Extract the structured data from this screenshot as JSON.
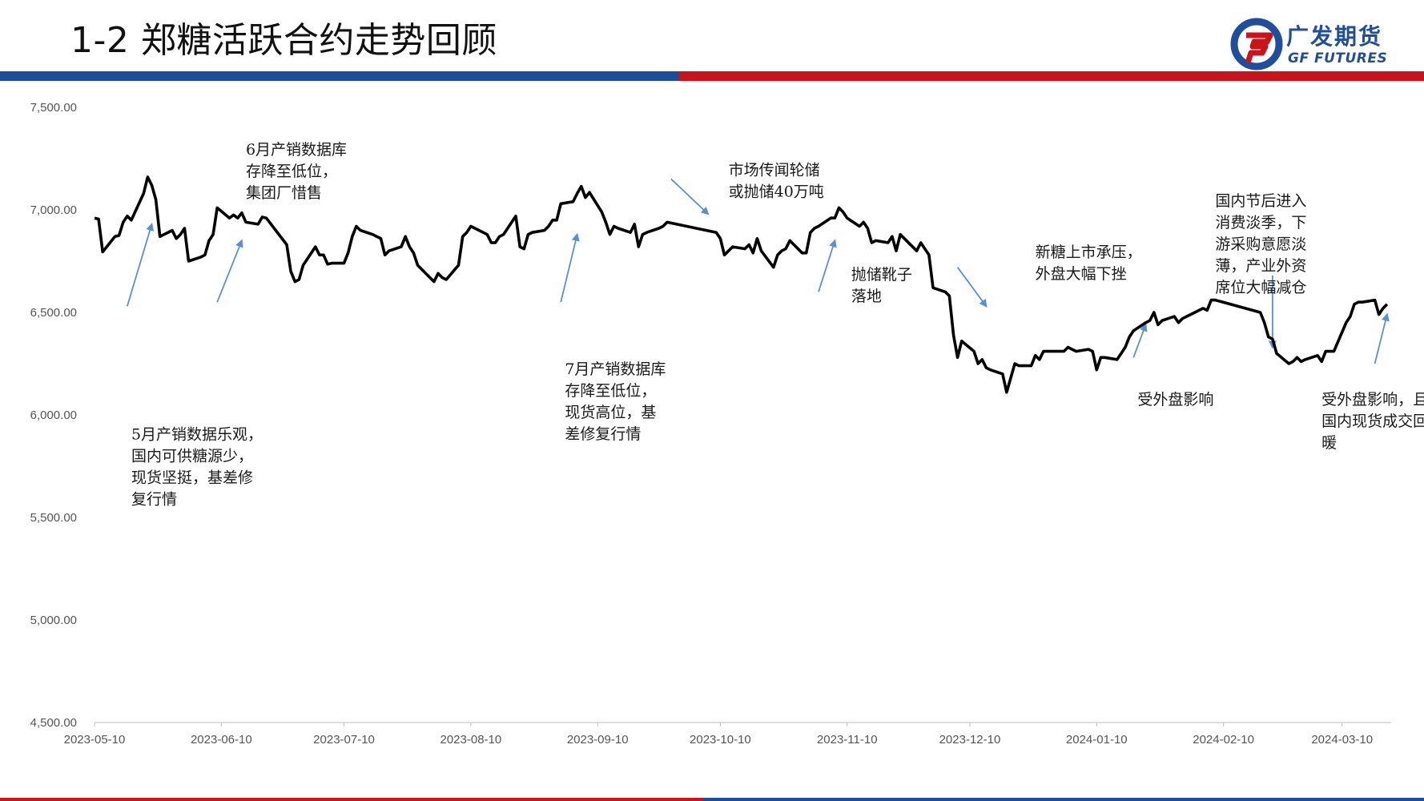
{
  "header": {
    "title": "1-2 郑糖活跃合约走势回顾",
    "logo_cn": "广发期货",
    "logo_en": "GF FUTURES"
  },
  "colors": {
    "line": "#000000",
    "arrow": "#5b8fd0",
    "brand_blue": "#1a4e9a",
    "brand_red": "#c8151b"
  },
  "chart_data": {
    "type": "line",
    "title": "",
    "xlabel": "",
    "ylabel": "",
    "ylim": [
      4500,
      7500
    ],
    "y_ticks": [
      "4,500.00",
      "5,000.00",
      "5,500.00",
      "6,000.00",
      "6,500.00",
      "7,000.00",
      "7,500.00"
    ],
    "y_tick_values": [
      4500,
      5000,
      5500,
      6000,
      6500,
      7000,
      7500
    ],
    "xlim": [
      "2023-05-10",
      "2024-03-22"
    ],
    "x_ticks": [
      "2023-05-10",
      "2023-06-10",
      "2023-07-10",
      "2023-08-10",
      "2023-09-10",
      "2023-10-10",
      "2023-11-10",
      "2023-12-10",
      "2024-01-10",
      "2024-02-10",
      "2024-03-10"
    ],
    "grid": false,
    "legend": "none",
    "series": [
      {
        "points": [
          [
            "2023-05-10",
            6960
          ],
          [
            "2023-05-11",
            6955
          ],
          [
            "2023-05-12",
            6795
          ],
          [
            "2023-05-15",
            6870
          ],
          [
            "2023-05-16",
            6875
          ],
          [
            "2023-05-17",
            6940
          ],
          [
            "2023-05-18",
            6970
          ],
          [
            "2023-05-19",
            6950
          ],
          [
            "2023-05-22",
            7080
          ],
          [
            "2023-05-23",
            7160
          ],
          [
            "2023-05-24",
            7120
          ],
          [
            "2023-05-25",
            7050
          ],
          [
            "2023-05-26",
            6870
          ],
          [
            "2023-05-29",
            6900
          ],
          [
            "2023-05-30",
            6860
          ],
          [
            "2023-05-31",
            6880
          ],
          [
            "2023-06-01",
            6910
          ],
          [
            "2023-06-02",
            6750
          ],
          [
            "2023-06-05",
            6770
          ],
          [
            "2023-06-06",
            6780
          ],
          [
            "2023-06-07",
            6850
          ],
          [
            "2023-06-08",
            6880
          ],
          [
            "2023-06-09",
            7010
          ],
          [
            "2023-06-12",
            6960
          ],
          [
            "2023-06-13",
            6975
          ],
          [
            "2023-06-14",
            6960
          ],
          [
            "2023-06-15",
            6985
          ],
          [
            "2023-06-16",
            6940
          ],
          [
            "2023-06-19",
            6930
          ],
          [
            "2023-06-20",
            6965
          ],
          [
            "2023-06-21",
            6960
          ],
          [
            "2023-06-26",
            6830
          ],
          [
            "2023-06-27",
            6700
          ],
          [
            "2023-06-28",
            6650
          ],
          [
            "2023-06-29",
            6660
          ],
          [
            "2023-06-30",
            6730
          ],
          [
            "2023-07-03",
            6820
          ],
          [
            "2023-07-04",
            6780
          ],
          [
            "2023-07-05",
            6780
          ],
          [
            "2023-07-06",
            6735
          ],
          [
            "2023-07-07",
            6740
          ],
          [
            "2023-07-10",
            6740
          ],
          [
            "2023-07-11",
            6790
          ],
          [
            "2023-07-12",
            6870
          ],
          [
            "2023-07-13",
            6920
          ],
          [
            "2023-07-14",
            6900
          ],
          [
            "2023-07-17",
            6880
          ],
          [
            "2023-07-18",
            6870
          ],
          [
            "2023-07-19",
            6860
          ],
          [
            "2023-07-20",
            6780
          ],
          [
            "2023-07-21",
            6800
          ],
          [
            "2023-07-24",
            6820
          ],
          [
            "2023-07-25",
            6870
          ],
          [
            "2023-07-26",
            6820
          ],
          [
            "2023-07-27",
            6790
          ],
          [
            "2023-07-28",
            6730
          ],
          [
            "2023-07-31",
            6670
          ],
          [
            "2023-08-01",
            6650
          ],
          [
            "2023-08-02",
            6690
          ],
          [
            "2023-08-03",
            6670
          ],
          [
            "2023-08-04",
            6660
          ],
          [
            "2023-08-07",
            6730
          ],
          [
            "2023-08-08",
            6870
          ],
          [
            "2023-08-09",
            6890
          ],
          [
            "2023-08-10",
            6920
          ],
          [
            "2023-08-14",
            6880
          ],
          [
            "2023-08-15",
            6840
          ],
          [
            "2023-08-16",
            6840
          ],
          [
            "2023-08-17",
            6870
          ],
          [
            "2023-08-18",
            6880
          ],
          [
            "2023-08-21",
            6970
          ],
          [
            "2023-08-22",
            6820
          ],
          [
            "2023-08-23",
            6810
          ],
          [
            "2023-08-24",
            6880
          ],
          [
            "2023-08-25",
            6890
          ],
          [
            "2023-08-28",
            6900
          ],
          [
            "2023-08-29",
            6920
          ],
          [
            "2023-08-30",
            6950
          ],
          [
            "2023-08-31",
            6950
          ],
          [
            "2023-09-01",
            7030
          ],
          [
            "2023-09-04",
            7040
          ],
          [
            "2023-09-05",
            7080
          ],
          [
            "2023-09-06",
            7115
          ],
          [
            "2023-09-07",
            7060
          ],
          [
            "2023-09-08",
            7085
          ],
          [
            "2023-09-11",
            6990
          ],
          [
            "2023-09-12",
            6940
          ],
          [
            "2023-09-13",
            6880
          ],
          [
            "2023-09-14",
            6920
          ],
          [
            "2023-09-15",
            6910
          ],
          [
            "2023-09-18",
            6890
          ],
          [
            "2023-09-19",
            6930
          ],
          [
            "2023-09-20",
            6820
          ],
          [
            "2023-09-21",
            6880
          ],
          [
            "2023-09-22",
            6890
          ],
          [
            "2023-09-25",
            6910
          ],
          [
            "2023-09-26",
            6920
          ],
          [
            "2023-09-27",
            6940
          ],
          [
            "2023-10-09",
            6890
          ],
          [
            "2023-10-10",
            6860
          ],
          [
            "2023-10-11",
            6780
          ],
          [
            "2023-10-12",
            6800
          ],
          [
            "2023-10-13",
            6820
          ],
          [
            "2023-10-16",
            6810
          ],
          [
            "2023-10-17",
            6830
          ],
          [
            "2023-10-18",
            6790
          ],
          [
            "2023-10-19",
            6860
          ],
          [
            "2023-10-20",
            6800
          ],
          [
            "2023-10-23",
            6720
          ],
          [
            "2023-10-24",
            6780
          ],
          [
            "2023-10-25",
            6800
          ],
          [
            "2023-10-26",
            6810
          ],
          [
            "2023-10-27",
            6850
          ],
          [
            "2023-10-30",
            6790
          ],
          [
            "2023-10-31",
            6790
          ],
          [
            "2023-11-01",
            6890
          ],
          [
            "2023-11-02",
            6910
          ],
          [
            "2023-11-03",
            6920
          ],
          [
            "2023-11-06",
            6960
          ],
          [
            "2023-11-07",
            6960
          ],
          [
            "2023-11-08",
            7010
          ],
          [
            "2023-11-09",
            6990
          ],
          [
            "2023-11-10",
            6960
          ],
          [
            "2023-11-13",
            6920
          ],
          [
            "2023-11-14",
            6940
          ],
          [
            "2023-11-15",
            6910
          ],
          [
            "2023-11-16",
            6840
          ],
          [
            "2023-11-17",
            6850
          ],
          [
            "2023-11-20",
            6840
          ],
          [
            "2023-11-21",
            6870
          ],
          [
            "2023-11-22",
            6800
          ],
          [
            "2023-11-23",
            6880
          ],
          [
            "2023-11-24",
            6860
          ],
          [
            "2023-11-27",
            6800
          ],
          [
            "2023-11-28",
            6840
          ],
          [
            "2023-11-29",
            6810
          ],
          [
            "2023-11-30",
            6780
          ],
          [
            "2023-12-01",
            6620
          ],
          [
            "2023-12-04",
            6600
          ],
          [
            "2023-12-05",
            6580
          ],
          [
            "2023-12-06",
            6390
          ],
          [
            "2023-12-07",
            6280
          ],
          [
            "2023-12-08",
            6360
          ],
          [
            "2023-12-11",
            6310
          ],
          [
            "2023-12-12",
            6250
          ],
          [
            "2023-12-13",
            6270
          ],
          [
            "2023-12-14",
            6230
          ],
          [
            "2023-12-15",
            6220
          ],
          [
            "2023-12-18",
            6200
          ],
          [
            "2023-12-19",
            6110
          ],
          [
            "2023-12-20",
            6180
          ],
          [
            "2023-12-21",
            6250
          ],
          [
            "2023-12-22",
            6240
          ],
          [
            "2023-12-25",
            6240
          ],
          [
            "2023-12-26",
            6290
          ],
          [
            "2023-12-27",
            6270
          ],
          [
            "2023-12-28",
            6310
          ],
          [
            "2023-12-29",
            6310
          ],
          [
            "2024-01-02",
            6310
          ],
          [
            "2024-01-03",
            6330
          ],
          [
            "2024-01-04",
            6320
          ],
          [
            "2024-01-05",
            6310
          ],
          [
            "2024-01-08",
            6320
          ],
          [
            "2024-01-09",
            6310
          ],
          [
            "2024-01-10",
            6220
          ],
          [
            "2024-01-11",
            6280
          ],
          [
            "2024-01-12",
            6280
          ],
          [
            "2024-01-15",
            6270
          ],
          [
            "2024-01-16",
            6300
          ],
          [
            "2024-01-17",
            6330
          ],
          [
            "2024-01-18",
            6380
          ],
          [
            "2024-01-19",
            6410
          ],
          [
            "2024-01-22",
            6450
          ],
          [
            "2024-01-23",
            6460
          ],
          [
            "2024-01-24",
            6500
          ],
          [
            "2024-01-25",
            6440
          ],
          [
            "2024-01-26",
            6460
          ],
          [
            "2024-01-29",
            6480
          ],
          [
            "2024-01-30",
            6450
          ],
          [
            "2024-01-31",
            6470
          ],
          [
            "2024-02-01",
            6480
          ],
          [
            "2024-02-02",
            6490
          ],
          [
            "2024-02-05",
            6520
          ],
          [
            "2024-02-06",
            6510
          ],
          [
            "2024-02-07",
            6560
          ],
          [
            "2024-02-08",
            6560
          ],
          [
            "2024-02-19",
            6500
          ],
          [
            "2024-02-20",
            6450
          ],
          [
            "2024-02-21",
            6380
          ],
          [
            "2024-02-22",
            6370
          ],
          [
            "2024-02-23",
            6300
          ],
          [
            "2024-02-26",
            6250
          ],
          [
            "2024-02-27",
            6260
          ],
          [
            "2024-02-28",
            6280
          ],
          [
            "2024-02-29",
            6260
          ],
          [
            "2024-03-01",
            6270
          ],
          [
            "2024-03-04",
            6290
          ],
          [
            "2024-03-05",
            6260
          ],
          [
            "2024-03-06",
            6310
          ],
          [
            "2024-03-07",
            6310
          ],
          [
            "2024-03-08",
            6310
          ],
          [
            "2024-03-11",
            6450
          ],
          [
            "2024-03-12",
            6480
          ],
          [
            "2024-03-13",
            6540
          ],
          [
            "2024-03-14",
            6550
          ],
          [
            "2024-03-15",
            6550
          ],
          [
            "2024-03-18",
            6560
          ],
          [
            "2024-03-19",
            6490
          ],
          [
            "2024-03-20",
            6520
          ],
          [
            "2024-03-21",
            6540
          ]
        ]
      }
    ],
    "annotations": [
      {
        "lines": [
          "5月产销数据乐观，",
          "国内可供糖源少，",
          "现货坚挺，基差修",
          "复行情"
        ],
        "date": "2023-05-19",
        "value": 5880
      },
      {
        "lines": [
          "6月产销数据库",
          "存降至低位，",
          "集团厂惜售"
        ],
        "date": "2023-06-16",
        "value": 7270
      },
      {
        "lines": [
          "7月产销数据库",
          "存降至低位，",
          "现货高位，基",
          "差修复行情"
        ],
        "date": "2023-09-02",
        "value": 6200
      },
      {
        "lines": [
          "市场传闻轮储",
          "或抛储40万吨"
        ],
        "date": "2023-10-12",
        "value": 7170
      },
      {
        "lines": [
          "抛储靴子",
          "落地"
        ],
        "date": "2023-11-11",
        "value": 6660
      },
      {
        "lines": [
          "新糖上市承压，",
          "外盘大幅下挫"
        ],
        "date": "2023-12-26",
        "value": 6770
      },
      {
        "lines": [
          "受外盘影响"
        ],
        "date": "2024-01-20",
        "value": 6050
      },
      {
        "lines": [
          "国内节后进入",
          "消费淡季，下",
          "游采购意愿淡",
          "薄，产业外资",
          "席位大幅减仓"
        ],
        "date": "2024-02-08",
        "value": 7020
      },
      {
        "lines": [
          "受外盘影响，且",
          "国内现货成交回",
          "暖"
        ],
        "date": "2024-03-05",
        "value": 6050
      }
    ],
    "arrows": [
      {
        "from": [
          "2023-05-18",
          6530
        ],
        "to": [
          "2023-05-24",
          6930
        ]
      },
      {
        "from": [
          "2023-06-09",
          6550
        ],
        "to": [
          "2023-06-15",
          6850
        ]
      },
      {
        "from": [
          "2023-09-01",
          6550
        ],
        "to": [
          "2023-09-05",
          6880
        ]
      },
      {
        "from": [
          "2023-09-28",
          7150
        ],
        "to": [
          "2023-10-07",
          6980
        ]
      },
      {
        "from": [
          "2023-11-03",
          6600
        ],
        "to": [
          "2023-11-07",
          6850
        ]
      },
      {
        "from": [
          "2023-12-07",
          6720
        ],
        "to": [
          "2023-12-14",
          6530
        ]
      },
      {
        "from": [
          "2024-01-19",
          6280
        ],
        "to": [
          "2024-01-22",
          6440
        ]
      },
      {
        "from": [
          "2024-02-22",
          6680
        ],
        "to": [
          "2024-02-22",
          6330
        ]
      },
      {
        "from": [
          "2024-03-18",
          6250
        ],
        "to": [
          "2024-03-21",
          6490
        ]
      }
    ]
  }
}
